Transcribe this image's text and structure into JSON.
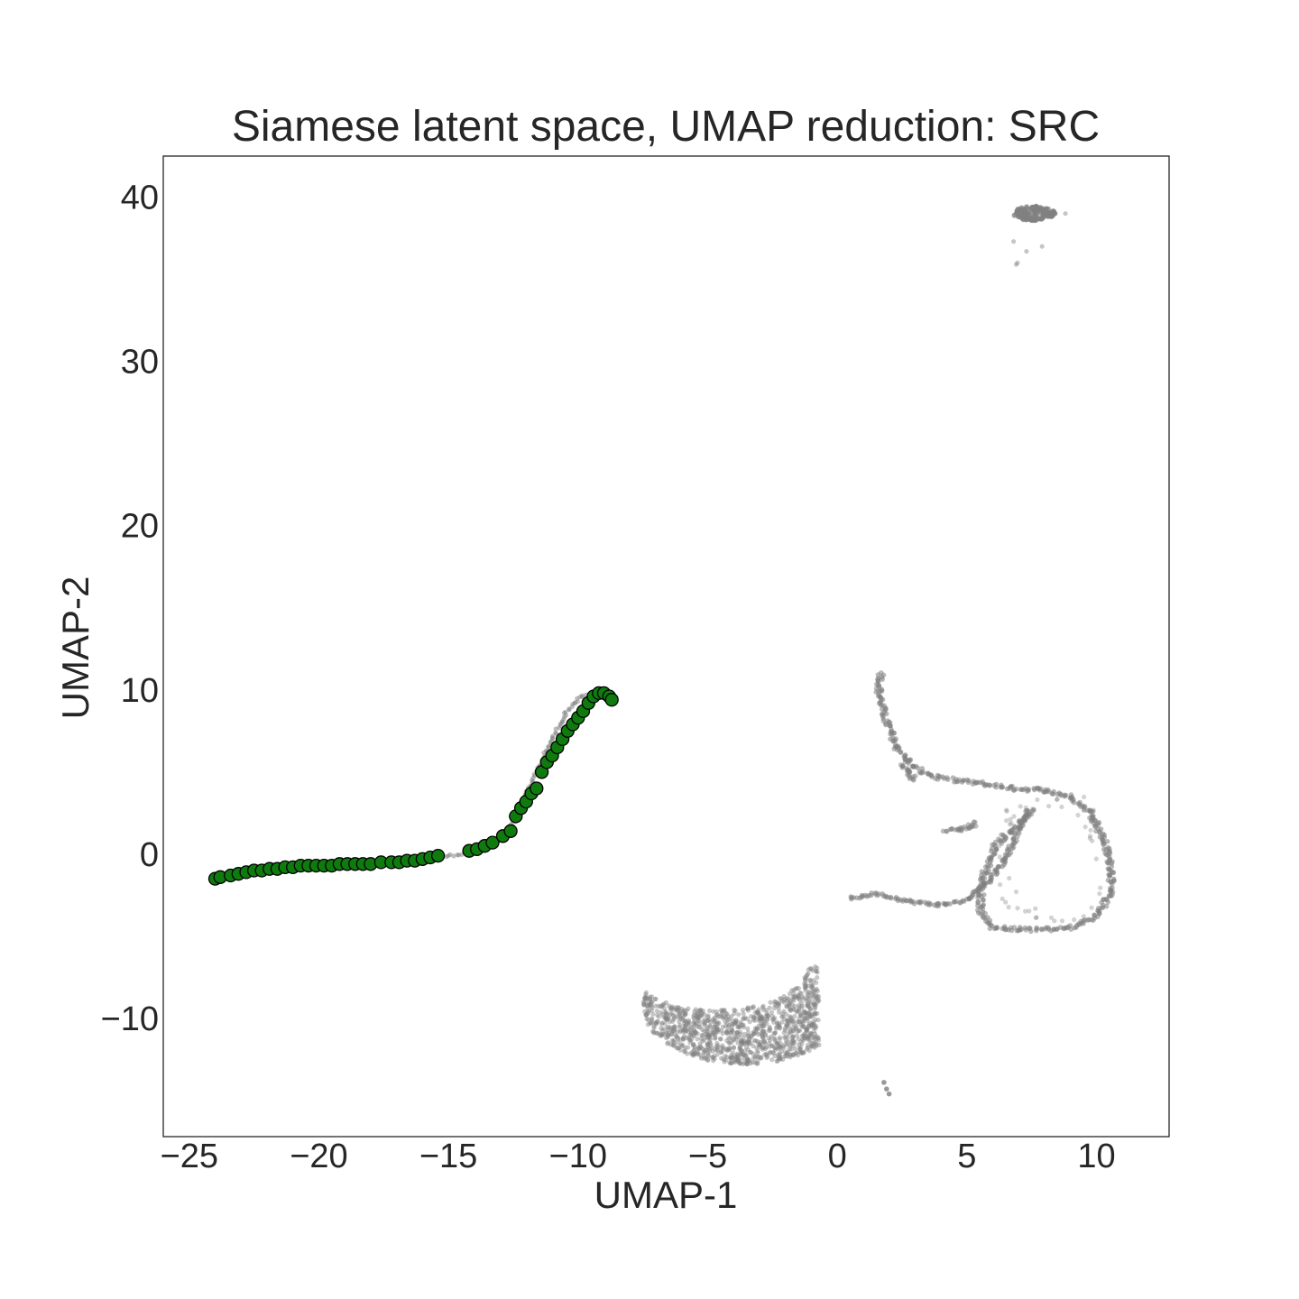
{
  "chart_data": {
    "type": "scatter",
    "title": "Siamese latent space, UMAP reduction: SRC",
    "xlabel": "UMAP-1",
    "ylabel": "UMAP-2",
    "xlim": [
      -26.0,
      12.8
    ],
    "ylim": [
      -17.2,
      42.5
    ],
    "xticks": [
      -25,
      -20,
      -15,
      -10,
      -5,
      0,
      5,
      10
    ],
    "yticks": [
      -10,
      0,
      10,
      20,
      30,
      40
    ],
    "xtick_labels": [
      "−25",
      "−20",
      "−15",
      "−10",
      "−5",
      "0",
      "5",
      "10"
    ],
    "ytick_labels": [
      "−10",
      "0",
      "10",
      "20",
      "30",
      "40"
    ],
    "grid": false,
    "series": [
      {
        "color": "#808080",
        "style": "background-cloud",
        "clusters": {
          "trail": [
            [
              -23.8,
              -1.4
            ],
            [
              -22.0,
              -0.9
            ],
            [
              -20.0,
              -0.7
            ],
            [
              -18.0,
              -0.6
            ],
            [
              -16.0,
              -0.4
            ],
            [
              -15.0,
              -0.1
            ],
            [
              -14.0,
              0.1
            ],
            [
              -13.2,
              0.7
            ],
            [
              -12.6,
              1.6
            ],
            [
              -12.2,
              3.0
            ],
            [
              -11.6,
              5.0
            ],
            [
              -11.0,
              7.0
            ],
            [
              -10.4,
              8.8
            ],
            [
              -9.8,
              9.7
            ],
            [
              -9.2,
              9.7
            ]
          ],
          "c_path": [
            [
              1.7,
              11.0
            ],
            [
              1.6,
              10.0
            ],
            [
              1.8,
              8.5
            ],
            [
              2.3,
              6.5
            ],
            [
              3.0,
              5.2
            ],
            [
              4.0,
              4.6
            ],
            [
              5.5,
              4.3
            ],
            [
              6.8,
              4.0
            ],
            [
              8.0,
              3.9
            ],
            [
              9.0,
              3.5
            ],
            [
              9.8,
              2.5
            ],
            [
              10.3,
              0.8
            ],
            [
              10.6,
              -1.0
            ],
            [
              10.5,
              -2.5
            ],
            [
              10.0,
              -3.8
            ],
            [
              9.0,
              -4.5
            ],
            [
              7.5,
              -4.6
            ],
            [
              6.0,
              -4.5
            ],
            [
              5.5,
              -3.5
            ],
            [
              5.6,
              -1.5
            ],
            [
              6.1,
              0.5
            ],
            [
              7.0,
              1.8
            ],
            [
              7.5,
              2.7
            ]
          ],
          "e_path": [
            [
              0.5,
              -2.7
            ],
            [
              1.5,
              -2.4
            ],
            [
              2.8,
              -2.9
            ],
            [
              4.0,
              -3.1
            ],
            [
              5.0,
              -2.8
            ],
            [
              5.9,
              -1.5
            ],
            [
              6.5,
              -0.3
            ],
            [
              7.0,
              1.5
            ],
            [
              7.4,
              2.7
            ]
          ],
          "wisp_paths": [
            [
              [
                2.5,
                5.5
              ],
              [
                3.0,
                4.5
              ]
            ],
            [
              [
                4.2,
                1.4
              ],
              [
                5.0,
                1.6
              ],
              [
                5.4,
                1.9
              ]
            ]
          ],
          "c_interior": {
            "x_range": [
              6.2,
              10.2
            ],
            "y_range": [
              -4.2,
              3.8
            ]
          },
          "arc_blob": {
            "center": [
              -3.6,
              -9.4
            ],
            "x_range": [
              -7.8,
              -0.7
            ],
            "y_range": [
              -12.8,
              -4.9
            ]
          },
          "top_blob": {
            "center": [
              7.6,
              39.0
            ],
            "x_range": [
              6.6,
              8.8
            ],
            "y_range": [
              35.8,
              39.5
            ]
          },
          "bottom_specks": [
            [
              1.8,
              -13.9
            ],
            [
              1.9,
              -14.3
            ],
            [
              2.0,
              -14.6
            ]
          ]
        }
      },
      {
        "color": "#0f7b0f",
        "edgecolor": "#000000",
        "style": "highlighted",
        "points": [
          [
            -24.0,
            -1.5
          ],
          [
            -23.8,
            -1.4
          ],
          [
            -23.4,
            -1.3
          ],
          [
            -23.1,
            -1.2
          ],
          [
            -22.8,
            -1.1
          ],
          [
            -22.5,
            -1.0
          ],
          [
            -22.2,
            -1.0
          ],
          [
            -21.9,
            -0.9
          ],
          [
            -21.6,
            -0.9
          ],
          [
            -21.3,
            -0.8
          ],
          [
            -21.0,
            -0.8
          ],
          [
            -20.7,
            -0.7
          ],
          [
            -20.4,
            -0.7
          ],
          [
            -20.1,
            -0.7
          ],
          [
            -19.8,
            -0.7
          ],
          [
            -19.5,
            -0.7
          ],
          [
            -19.2,
            -0.6
          ],
          [
            -18.9,
            -0.6
          ],
          [
            -18.6,
            -0.6
          ],
          [
            -18.3,
            -0.6
          ],
          [
            -18.0,
            -0.6
          ],
          [
            -17.6,
            -0.5
          ],
          [
            -17.2,
            -0.5
          ],
          [
            -16.9,
            -0.5
          ],
          [
            -16.6,
            -0.4
          ],
          [
            -16.3,
            -0.4
          ],
          [
            -16.0,
            -0.3
          ],
          [
            -15.7,
            -0.2
          ],
          [
            -15.4,
            -0.1
          ],
          [
            -14.2,
            0.2
          ],
          [
            -13.9,
            0.3
          ],
          [
            -13.6,
            0.5
          ],
          [
            -13.3,
            0.7
          ],
          [
            -12.9,
            1.1
          ],
          [
            -12.6,
            1.4
          ],
          [
            -12.4,
            2.3
          ],
          [
            -12.2,
            2.8
          ],
          [
            -12.0,
            3.2
          ],
          [
            -11.8,
            3.7
          ],
          [
            -11.6,
            4.0
          ],
          [
            -11.4,
            5.0
          ],
          [
            -11.2,
            5.6
          ],
          [
            -11.0,
            6.0
          ],
          [
            -10.8,
            6.5
          ],
          [
            -10.6,
            7.0
          ],
          [
            -10.4,
            7.5
          ],
          [
            -10.2,
            7.9
          ],
          [
            -10.0,
            8.3
          ],
          [
            -9.8,
            8.7
          ],
          [
            -9.6,
            9.2
          ],
          [
            -9.4,
            9.6
          ],
          [
            -9.2,
            9.8
          ],
          [
            -9.0,
            9.8
          ],
          [
            -8.8,
            9.6
          ],
          [
            -8.7,
            9.4
          ]
        ]
      }
    ]
  }
}
